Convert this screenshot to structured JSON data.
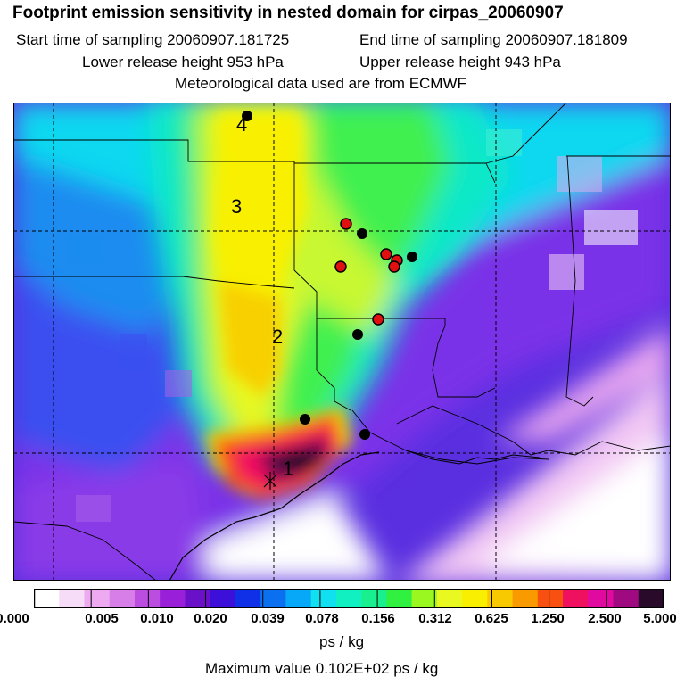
{
  "header": {
    "title": "Footprint emission sensitivity in nested domain for cirpas_20060907",
    "start_time": "Start time of sampling 20060907.181725",
    "end_time": "End time of sampling 20060907.181809",
    "lower_release": "Lower release height  953 hPa",
    "upper_release": "Upper release height  943 hPa",
    "met_data": "Meteorological data used are from ECMWF"
  },
  "map": {
    "region_labels": [
      "1",
      "2",
      "3",
      "4"
    ],
    "release_markers": "red circles",
    "position_markers": "black dots"
  },
  "colorbar": {
    "colors": [
      "#ffffff",
      "#f7dcf7",
      "#eeaaf0",
      "#d77ee8",
      "#bb4ee0",
      "#9a1fd8",
      "#6a10c8",
      "#3c10d8",
      "#1030e8",
      "#0a70f0",
      "#08a8f8",
      "#10e0f0",
      "#10f0c0",
      "#18f090",
      "#30f040",
      "#9af820",
      "#e8f820",
      "#f8f000",
      "#f8c800",
      "#f89a00",
      "#f85010",
      "#f01060",
      "#e00aa0",
      "#a00a80",
      "#2a0a2a"
    ],
    "tick_labels": [
      "0.000",
      "0.005",
      "0.010",
      "0.020",
      "0.039",
      "0.078",
      "0.156",
      "0.312",
      "0.625",
      "1.250",
      "2.500",
      "5.000"
    ],
    "unit": "ps / kg"
  },
  "footer": {
    "max_value": "Maximum value  0.102E+02 ps / kg"
  }
}
